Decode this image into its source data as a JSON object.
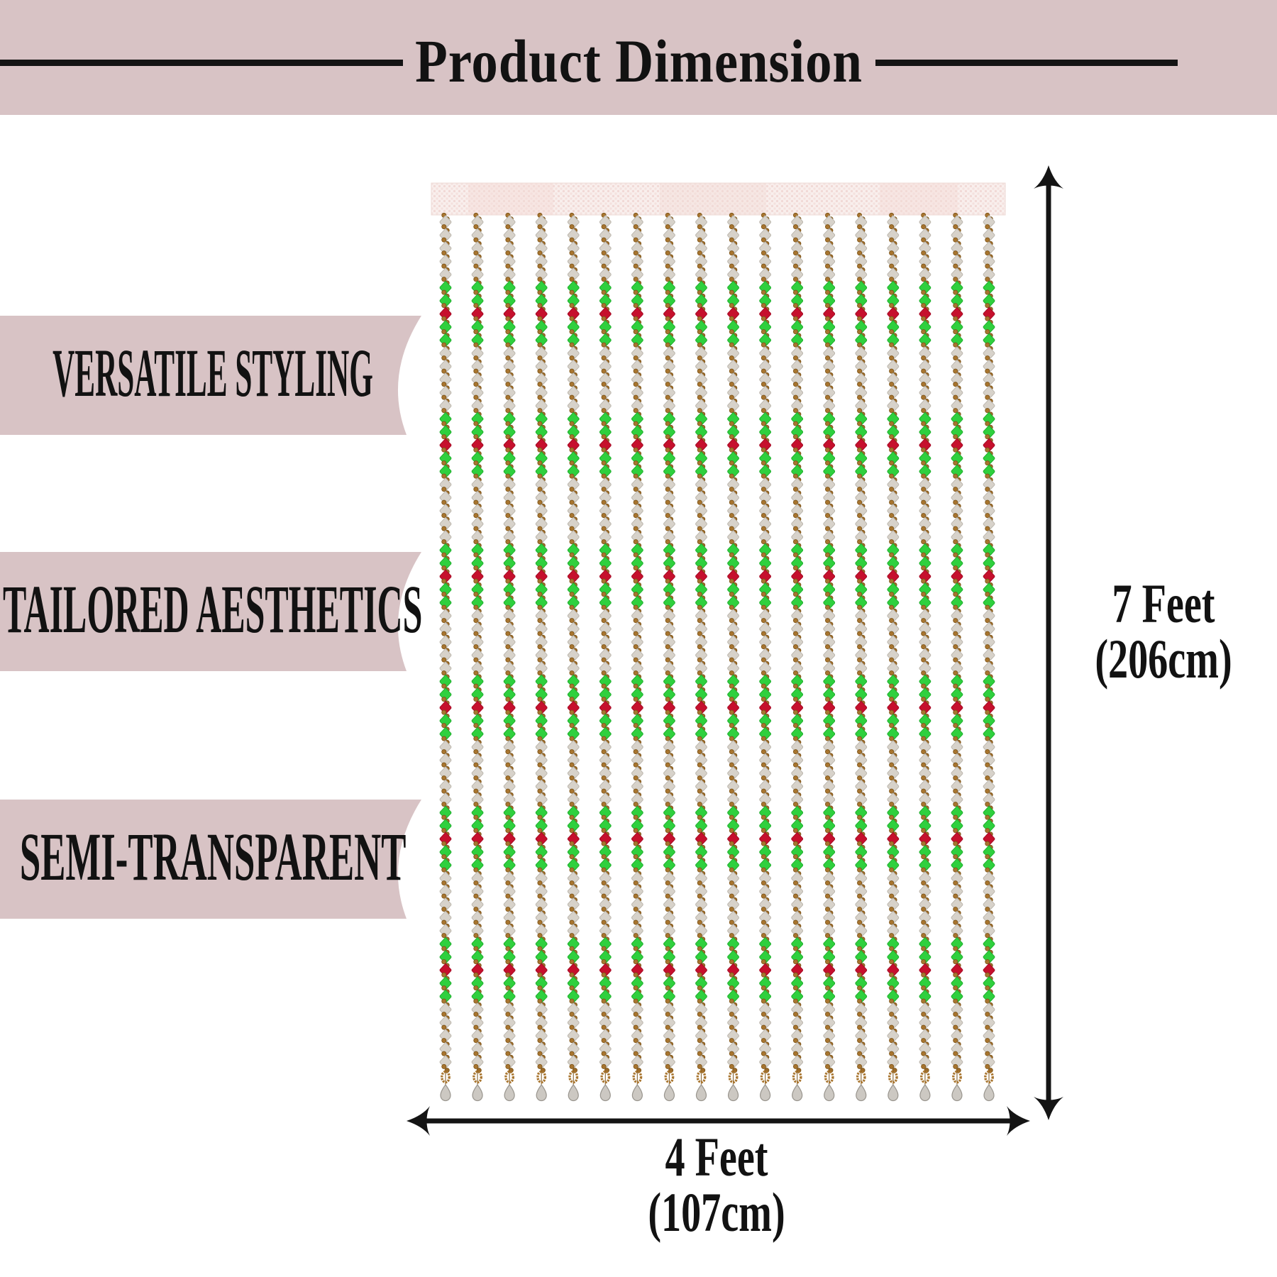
{
  "header": {
    "title": "Product Dimension",
    "background": "#d8c3c5",
    "text_color": "#121212"
  },
  "features": [
    {
      "label": "VERSATILE STYLING"
    },
    {
      "label": "TAILORED AESTHETICS"
    },
    {
      "label": "SEMI-TRANSPARENT"
    }
  ],
  "dimensions": {
    "height": {
      "line1": "7 Feet",
      "line2": "(206cm)"
    },
    "width": {
      "line1": "4 Feet",
      "line2": "(107cm)"
    }
  },
  "curtain": {
    "strand_count": 18,
    "beads_per_strand": 65,
    "bead_pattern": [
      "white",
      "white",
      "white",
      "white",
      "white",
      "green",
      "green",
      "red",
      "green",
      "green"
    ],
    "colors": {
      "rod_base": "#f9efed",
      "rod_texture": "#f1d9d6",
      "white_bead": "#d7d2ca",
      "green_bead": "#2fd03e",
      "red_bead": "#c6102d",
      "spacer_gold": "#a8752f",
      "teardrop": "#ccc8c2",
      "arrow": "#141414"
    }
  }
}
